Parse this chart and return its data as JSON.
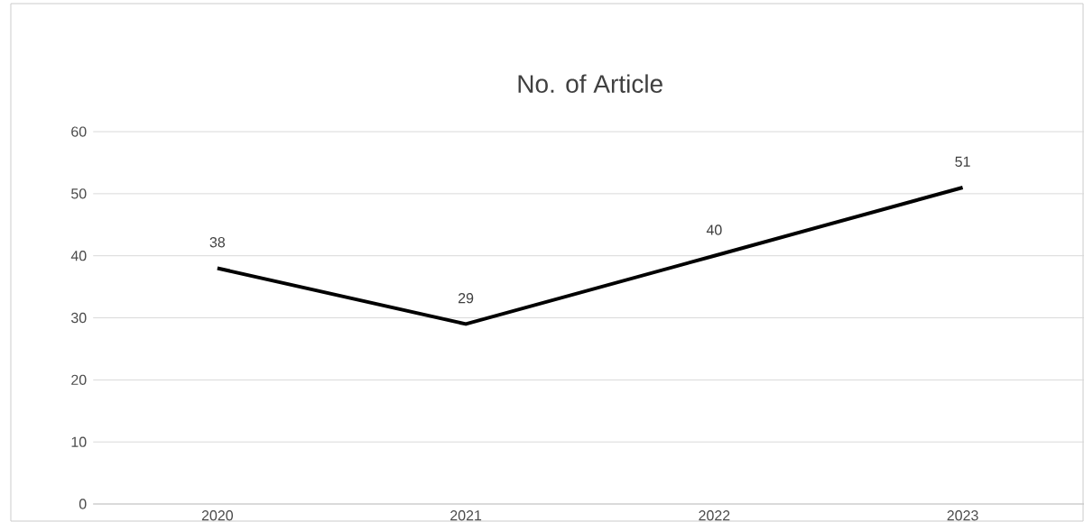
{
  "chart_data": {
    "type": "line",
    "title": "No. of Article",
    "categories": [
      "2020",
      "2021",
      "2022",
      "2023"
    ],
    "values": [
      38,
      29,
      40,
      51
    ],
    "color": "#000000",
    "ylim": [
      0,
      60
    ],
    "yticks": [
      0,
      10,
      20,
      30,
      40,
      50,
      60
    ],
    "grid": "y",
    "data_labels": true,
    "marker": "none",
    "line_style": "solid"
  }
}
